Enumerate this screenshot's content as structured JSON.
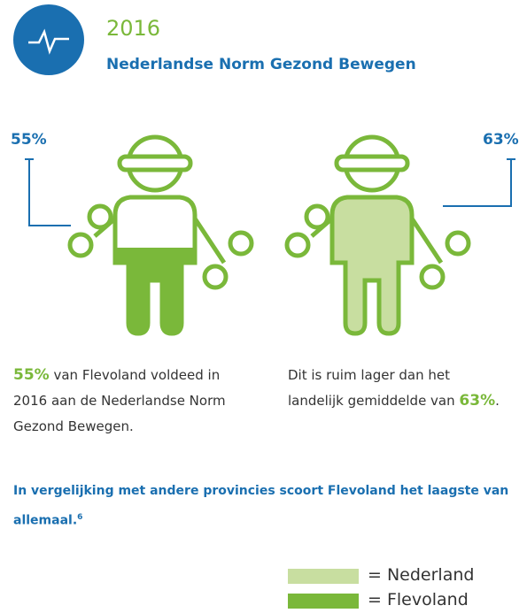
{
  "header": {
    "year": "2016",
    "title": "Nederlandse Norm Gezond Bewegen"
  },
  "figures": [
    {
      "label": "55%"
    },
    {
      "label": "63%"
    }
  ],
  "text_left": {
    "highlight": "55%",
    "rest": " van Flevoland voldeed in 2016 aan de Nederlandse Norm Gezond Bewegen."
  },
  "text_right": {
    "start": "Dit is ruim lager dan het landelijk gemiddelde van ",
    "highlight": "63%",
    "end": "."
  },
  "note": {
    "text": "In vergelijking met andere provincies scoort Flevoland het laagste van allemaal.",
    "footnote": "6"
  },
  "legend": [
    {
      "label": "= Nederland"
    },
    {
      "label": "= Flevoland"
    }
  ]
}
